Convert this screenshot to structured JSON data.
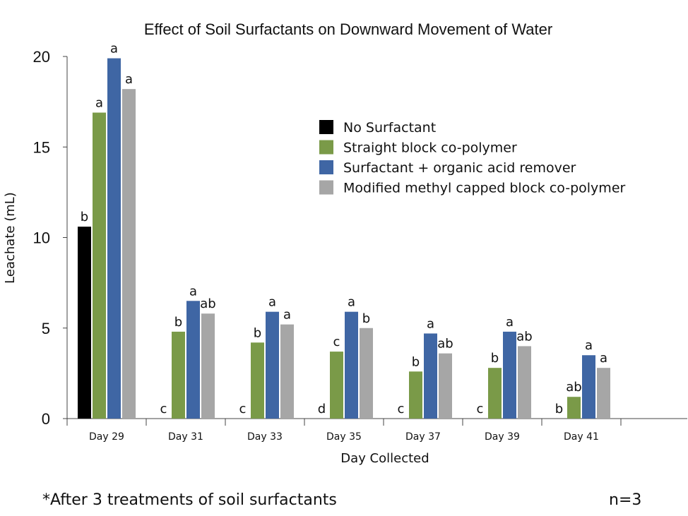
{
  "chart_data": {
    "type": "bar",
    "title": "Effect of Soil Surfactants on Downward Movement of Water",
    "xlabel": "Day Collected",
    "ylabel": "Leachate (mL)",
    "ylim": [
      0,
      20
    ],
    "yticks": [
      0,
      5,
      10,
      15,
      20
    ],
    "categories": [
      "Day 29",
      "Day 31",
      "Day 33",
      "Day 35",
      "Day 37",
      "Day 39",
      "Day 41"
    ],
    "legend_position": "upper-right",
    "series": [
      {
        "name": "No Surfactant",
        "color": "#000000",
        "values": [
          10.6,
          0,
          0,
          0,
          0,
          0,
          0
        ],
        "labels": [
          "b",
          "c",
          "c",
          "d",
          "c",
          "c",
          "b"
        ]
      },
      {
        "name": "Straight block co-polymer",
        "color": "#7a9a48",
        "values": [
          16.9,
          4.8,
          4.2,
          3.7,
          2.6,
          2.8,
          1.2
        ],
        "labels": [
          "a",
          "b",
          "b",
          "c",
          "b",
          "b",
          "ab"
        ]
      },
      {
        "name": "Surfactant + organic acid remover",
        "color": "#3f66a4",
        "values": [
          19.9,
          6.5,
          5.9,
          5.9,
          4.7,
          4.8,
          3.5
        ],
        "labels": [
          "a",
          "a",
          "a",
          "a",
          "a",
          "a",
          "a"
        ]
      },
      {
        "name": "Modified methyl capped block co-polymer",
        "color": "#a6a6a6",
        "values": [
          18.2,
          5.8,
          5.2,
          5.0,
          3.6,
          4.0,
          2.8
        ],
        "labels": [
          "a",
          "ab",
          "a",
          "b",
          "ab",
          "ab",
          "a"
        ]
      }
    ]
  },
  "footnote": "*After 3 treatments of soil surfactants",
  "sample_size": "n=3"
}
